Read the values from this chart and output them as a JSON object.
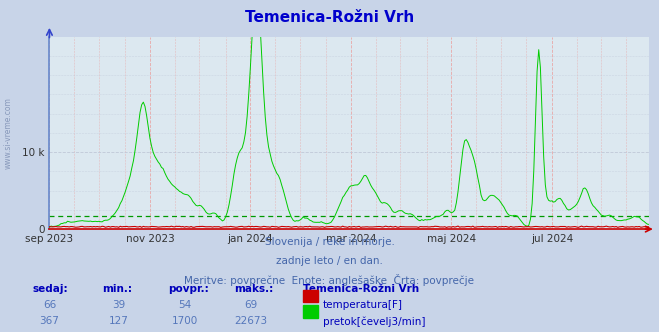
{
  "title": "Temenica-Rožni Vrh",
  "title_color": "#0000cc",
  "bg_color": "#c8d4e8",
  "plot_bg_color": "#dce8f0",
  "grid_color_h": "#c0c8d8",
  "grid_color_v": "#e8a8a8",
  "ylim": [
    0,
    25000
  ],
  "x_tick_labels": [
    "sep 2023",
    "nov 2023",
    "jan 2024",
    "mar 2024",
    "maj 2024",
    "jul 2024"
  ],
  "x_tick_positions": [
    0,
    61,
    122,
    183,
    244,
    305
  ],
  "avg_flow": 1700,
  "temp_color": "#cc0000",
  "flow_color": "#00cc00",
  "avg_line_color_flow": "#009900",
  "subtitle1": "Slovenija / reke in morje.",
  "subtitle2": "zadnje leto / en dan.",
  "subtitle3": "Meritve: povprečne  Enote: anglešaške  Črta: povprečje",
  "subtitle_color": "#4466aa",
  "label_sedaj": "sedaj:",
  "label_min": "min.:",
  "label_povpr": "povpr.:",
  "label_maks": "maks.:",
  "label_station": "Temenica-Rožni Vrh",
  "temp_sedaj": 66,
  "temp_min": 39,
  "temp_povpr": 54,
  "temp_maks": 69,
  "flow_sedaj": 367,
  "flow_min": 127,
  "flow_povpr": 1700,
  "flow_maks": 22673,
  "temp_label": "temperatura[F]",
  "flow_label": "pretok[čevelj3/min]",
  "left_label": "www.si-vreme.com",
  "left_label_color": "#8899bb",
  "spine_left_color": "#6688cc",
  "spine_bottom_color": "#cc0000",
  "arrow_y_color": "#3344cc",
  "arrow_x_color": "#cc0000"
}
